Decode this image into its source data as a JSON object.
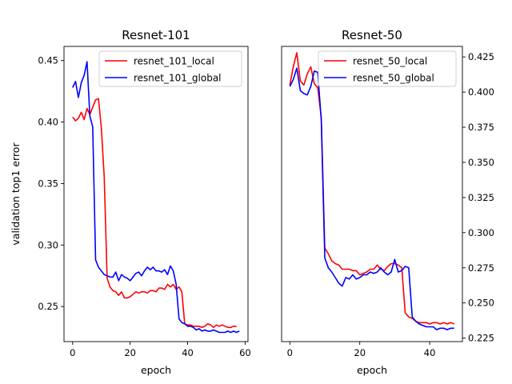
{
  "chart_data": [
    {
      "type": "line",
      "title": "Resnet-101",
      "xlabel": "epoch",
      "ylabel": "validation top1 error",
      "xlim": [
        -3,
        61
      ],
      "ylim": [
        0.2215,
        0.4615
      ],
      "x_ticks": [
        0,
        20,
        40,
        60
      ],
      "y_ticks": [
        0.25,
        0.3,
        0.35,
        0.4,
        0.45
      ],
      "y_tick_labels": [
        "0.25",
        "0.30",
        "0.35",
        "0.40",
        "0.45"
      ],
      "y_axis_side": "left",
      "legend": "upper-right",
      "grid": false,
      "series": [
        {
          "name": "resnet_101_local",
          "color": "#ff0000",
          "x": [
            0,
            1,
            2,
            3,
            4,
            5,
            6,
            7,
            8,
            9,
            10,
            11,
            12,
            13,
            14,
            15,
            16,
            17,
            18,
            19,
            20,
            21,
            22,
            23,
            24,
            25,
            26,
            27,
            28,
            29,
            30,
            31,
            32,
            33,
            34,
            35,
            36,
            37,
            38,
            39,
            40,
            41,
            42,
            43,
            44,
            45,
            46,
            47,
            48,
            49,
            50,
            51,
            52,
            53,
            54,
            55,
            56,
            57
          ],
          "y": [
            0.404,
            0.401,
            0.403,
            0.408,
            0.402,
            0.411,
            0.406,
            0.412,
            0.418,
            0.419,
            0.395,
            0.355,
            0.273,
            0.266,
            0.263,
            0.262,
            0.259,
            0.262,
            0.257,
            0.257,
            0.258,
            0.26,
            0.262,
            0.261,
            0.262,
            0.262,
            0.261,
            0.263,
            0.263,
            0.262,
            0.265,
            0.265,
            0.264,
            0.268,
            0.266,
            0.268,
            0.264,
            0.266,
            0.262,
            0.236,
            0.235,
            0.235,
            0.234,
            0.234,
            0.234,
            0.233,
            0.234,
            0.236,
            0.235,
            0.233,
            0.235,
            0.234,
            0.235,
            0.234,
            0.233,
            0.233,
            0.234,
            0.234
          ]
        },
        {
          "name": "resnet_101_global",
          "color": "#0000ff",
          "x": [
            0,
            1,
            2,
            3,
            4,
            5,
            6,
            7,
            8,
            9,
            10,
            11,
            12,
            13,
            14,
            15,
            16,
            17,
            18,
            19,
            20,
            21,
            22,
            23,
            24,
            25,
            26,
            27,
            28,
            29,
            30,
            31,
            32,
            33,
            34,
            35,
            36,
            37,
            38,
            39,
            40,
            41,
            42,
            43,
            44,
            45,
            46,
            47,
            48,
            49,
            50,
            51,
            52,
            53,
            54,
            55,
            56,
            57,
            58
          ],
          "y": [
            0.428,
            0.433,
            0.42,
            0.432,
            0.438,
            0.449,
            0.405,
            0.396,
            0.288,
            0.282,
            0.279,
            0.276,
            0.275,
            0.274,
            0.274,
            0.278,
            0.271,
            0.276,
            0.274,
            0.273,
            0.271,
            0.274,
            0.277,
            0.278,
            0.275,
            0.279,
            0.282,
            0.28,
            0.282,
            0.279,
            0.279,
            0.278,
            0.28,
            0.276,
            0.283,
            0.279,
            0.268,
            0.24,
            0.237,
            0.236,
            0.234,
            0.234,
            0.233,
            0.231,
            0.232,
            0.23,
            0.231,
            0.23,
            0.23,
            0.231,
            0.23,
            0.229,
            0.229,
            0.229,
            0.23,
            0.229,
            0.23,
            0.229,
            0.23
          ]
        }
      ]
    },
    {
      "type": "line",
      "title": "Resnet-50",
      "xlabel": "epoch",
      "ylabel": "",
      "xlim": [
        -2.35,
        49.35
      ],
      "ylim": [
        0.2225,
        0.4325
      ],
      "x_ticks": [
        0,
        20,
        40
      ],
      "y_ticks": [
        0.225,
        0.25,
        0.275,
        0.3,
        0.325,
        0.35,
        0.375,
        0.4,
        0.425
      ],
      "y_tick_labels": [
        "0.225",
        "0.250",
        "0.275",
        "0.300",
        "0.325",
        "0.350",
        "0.375",
        "0.400",
        "0.425"
      ],
      "y_axis_side": "right",
      "legend": "upper-right",
      "grid": false,
      "series": [
        {
          "name": "resnet_50_local",
          "color": "#ff0000",
          "x": [
            0,
            1,
            2,
            3,
            4,
            5,
            6,
            7,
            8,
            9,
            10,
            11,
            12,
            13,
            14,
            15,
            16,
            17,
            18,
            19,
            20,
            21,
            22,
            23,
            24,
            25,
            26,
            27,
            28,
            29,
            30,
            31,
            32,
            33,
            34,
            35,
            36,
            37,
            38,
            39,
            40,
            41,
            42,
            43,
            44,
            45,
            46,
            47
          ],
          "y": [
            0.405,
            0.418,
            0.428,
            0.408,
            0.405,
            0.413,
            0.418,
            0.406,
            0.403,
            0.382,
            0.289,
            0.285,
            0.28,
            0.278,
            0.277,
            0.274,
            0.274,
            0.274,
            0.273,
            0.273,
            0.27,
            0.271,
            0.272,
            0.274,
            0.274,
            0.277,
            0.274,
            0.273,
            0.276,
            0.278,
            0.278,
            0.277,
            0.275,
            0.243,
            0.24,
            0.239,
            0.237,
            0.236,
            0.236,
            0.236,
            0.235,
            0.236,
            0.236,
            0.235,
            0.236,
            0.235,
            0.236,
            0.235
          ]
        },
        {
          "name": "resnet_50_global",
          "color": "#0000ff",
          "x": [
            0,
            1,
            2,
            3,
            4,
            5,
            6,
            7,
            8,
            9,
            10,
            11,
            12,
            13,
            14,
            15,
            16,
            17,
            18,
            19,
            20,
            21,
            22,
            23,
            24,
            25,
            26,
            27,
            28,
            29,
            30,
            31,
            32,
            33,
            34,
            35,
            36,
            37,
            38,
            39,
            40,
            41,
            42,
            43,
            44,
            45,
            46,
            47
          ],
          "y": [
            0.404,
            0.409,
            0.417,
            0.401,
            0.399,
            0.398,
            0.404,
            0.415,
            0.414,
            0.38,
            0.282,
            0.275,
            0.272,
            0.268,
            0.264,
            0.262,
            0.268,
            0.267,
            0.27,
            0.267,
            0.268,
            0.27,
            0.27,
            0.272,
            0.271,
            0.272,
            0.275,
            0.272,
            0.27,
            0.272,
            0.281,
            0.272,
            0.273,
            0.276,
            0.275,
            0.24,
            0.237,
            0.235,
            0.234,
            0.233,
            0.233,
            0.233,
            0.231,
            0.232,
            0.232,
            0.231,
            0.232,
            0.232
          ]
        }
      ]
    }
  ]
}
